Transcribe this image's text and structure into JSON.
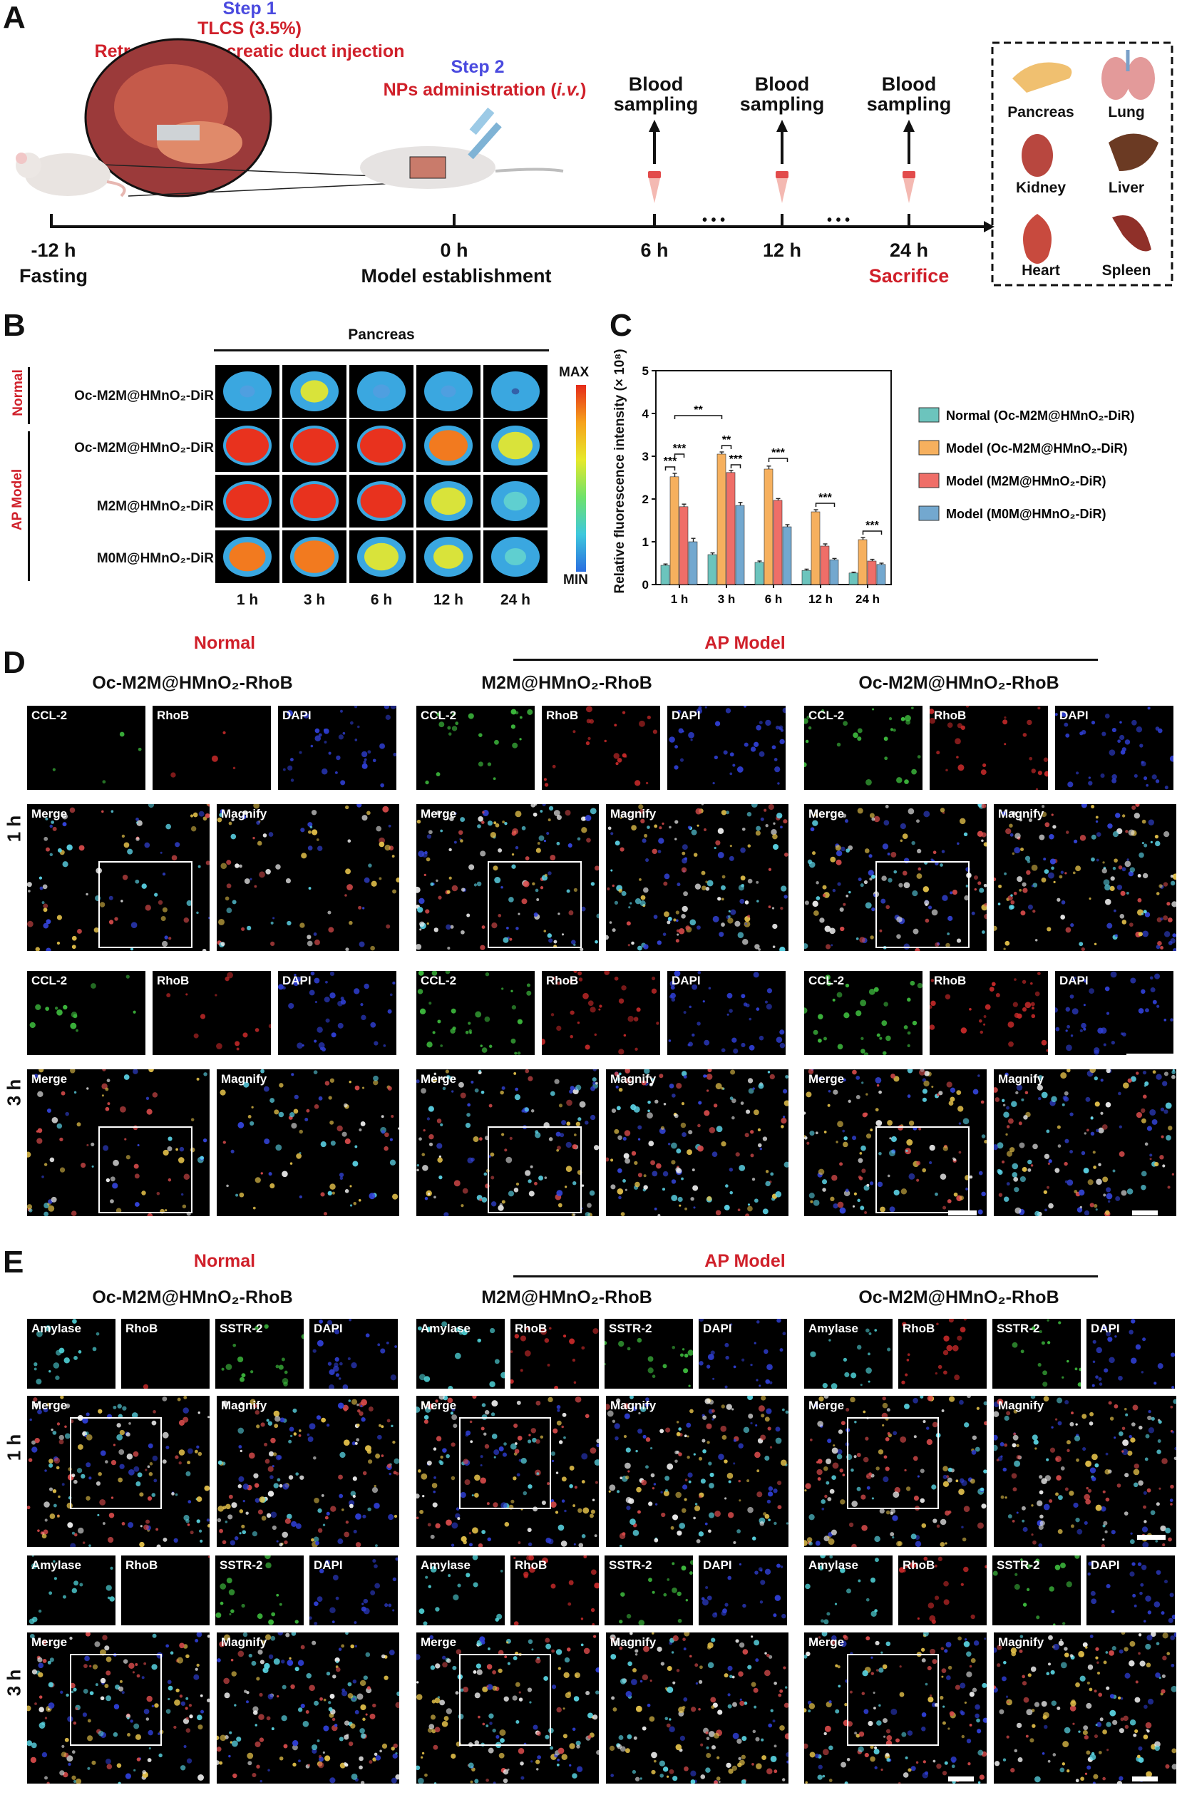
{
  "panels": {
    "A": "A",
    "B": "B",
    "C": "C",
    "D": "D",
    "E": "E"
  },
  "panelA": {
    "step1": {
      "title": "Step 1",
      "line1": "TLCS (3.5%)",
      "line2": "Retrograde pancreatic duct injection"
    },
    "step2": {
      "title": "Step 2",
      "line1": "NPs administration (",
      "line1_italic": "i.v.",
      "line1_end": ")"
    },
    "timepoints": [
      {
        "time": "-12 h",
        "caption": "Fasting"
      },
      {
        "time": "0 h",
        "caption": "Model establishment"
      },
      {
        "time": "6 h",
        "caption": ""
      },
      {
        "time": "12 h",
        "caption": ""
      },
      {
        "time": "24 h",
        "caption": "Sacrifice"
      }
    ],
    "blood_sampling": "Blood\nsampling",
    "ellipsis": "• • •",
    "organs": [
      "Pancreas",
      "Lung",
      "Kidney",
      "Liver",
      "Heart",
      "Spleen"
    ]
  },
  "panelB": {
    "header": "Pancreas",
    "group_normal": "Normal",
    "group_model": "AP Model",
    "rows": [
      "Oc-M2M@HMnO₂-DiR",
      "Oc-M2M@HMnO₂-DiR",
      "M2M@HMnO₂-DiR",
      "M0M@HMnO₂-DiR"
    ],
    "cols": [
      "1 h",
      "3 h",
      "6 h",
      "12 h",
      "24 h"
    ],
    "scale_max": "MAX",
    "scale_min": "MIN",
    "intensity": [
      [
        0.25,
        0.55,
        0.3,
        0.25,
        0.08
      ],
      [
        0.95,
        0.98,
        0.9,
        0.8,
        0.7
      ],
      [
        0.9,
        0.95,
        0.88,
        0.7,
        0.45
      ],
      [
        0.75,
        0.85,
        0.7,
        0.6,
        0.4
      ]
    ]
  },
  "chart_data": {
    "type": "bar",
    "categories": [
      "1 h",
      "3 h",
      "6 h",
      "12 h",
      "24 h"
    ],
    "ylabel": "Relative fluorescence intensity (× 10⁸)",
    "ylim": [
      0,
      5
    ],
    "yticks": [
      "0",
      "1",
      "2",
      "3",
      "4",
      "5"
    ],
    "series": [
      {
        "name": "Normal (Oc-M2M@HMnO₂-DiR)",
        "color": "#6cc4bd",
        "values": [
          0.45,
          0.7,
          0.52,
          0.33,
          0.27
        ],
        "err": [
          0.03,
          0.04,
          0.03,
          0.03,
          0.02
        ]
      },
      {
        "name": "Model (Oc-M2M@HMnO₂-DiR)",
        "color": "#f6b05e",
        "values": [
          2.52,
          3.05,
          2.7,
          1.7,
          1.05
        ],
        "err": [
          0.08,
          0.05,
          0.07,
          0.05,
          0.05
        ]
      },
      {
        "name": "Model (M2M@HMnO₂-DiR)",
        "color": "#ef6e68",
        "values": [
          1.82,
          2.62,
          1.97,
          0.9,
          0.55
        ],
        "err": [
          0.06,
          0.05,
          0.04,
          0.05,
          0.04
        ]
      },
      {
        "name": "Model (M0M@HMnO₂-DiR)",
        "color": "#73a8cf",
        "values": [
          1.0,
          1.85,
          1.35,
          0.58,
          0.47
        ],
        "err": [
          0.08,
          0.07,
          0.05,
          0.03,
          0.03
        ]
      }
    ],
    "significance": [
      "***",
      "***",
      "**",
      "**",
      "***",
      "***",
      "***",
      "***",
      "***"
    ],
    "legend_position": "right"
  },
  "panelD": {
    "normal_label": "Normal",
    "model_label": "AP Model",
    "groups": [
      "Oc-M2M@HMnO₂-RhoB",
      "M2M@HMnO₂-RhoB",
      "Oc-M2M@HMnO₂-RhoB"
    ],
    "times": [
      "1 h",
      "3 h"
    ],
    "channels": [
      "CCL-2",
      "RhoB",
      "DAPI"
    ],
    "merge": "Merge",
    "magnify": "Magnify"
  },
  "panelE": {
    "normal_label": "Normal",
    "model_label": "AP Model",
    "groups": [
      "Oc-M2M@HMnO₂-RhoB",
      "M2M@HMnO₂-RhoB",
      "Oc-M2M@HMnO₂-RhoB"
    ],
    "times": [
      "1 h",
      "3 h"
    ],
    "channels": [
      "Amylase",
      "RhoB",
      "SSTR-2",
      "DAPI"
    ],
    "merge": "Merge",
    "magnify": "Magnify"
  }
}
